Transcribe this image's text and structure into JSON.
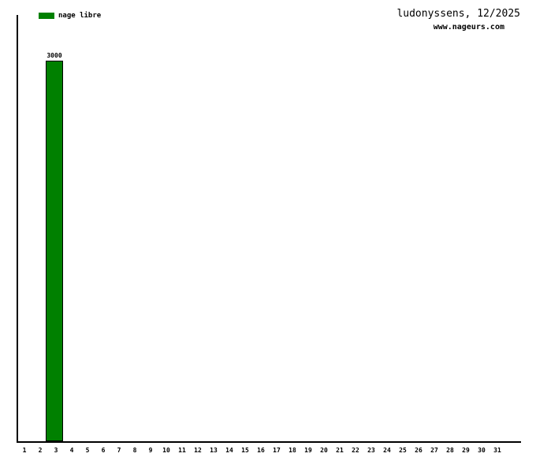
{
  "header": {
    "title": "ludonyssens, 12/2025",
    "subtitle": "www.nageurs.com"
  },
  "legend": {
    "items": [
      {
        "label": "nage libre",
        "color": "#008000"
      }
    ]
  },
  "chart_data": {
    "type": "bar",
    "title": "ludonyssens, 12/2025",
    "subtitle": "www.nageurs.com",
    "categories": [
      1,
      2,
      3,
      4,
      5,
      6,
      7,
      8,
      9,
      10,
      11,
      12,
      13,
      14,
      15,
      16,
      17,
      18,
      19,
      20,
      21,
      22,
      23,
      24,
      25,
      26,
      27,
      28,
      29,
      30,
      31
    ],
    "series": [
      {
        "name": "nage libre",
        "color": "#008000",
        "values": [
          0,
          0,
          3000,
          0,
          0,
          0,
          0,
          0,
          0,
          0,
          0,
          0,
          0,
          0,
          0,
          0,
          0,
          0,
          0,
          0,
          0,
          0,
          0,
          0,
          0,
          0,
          0,
          0,
          0,
          0,
          0
        ]
      }
    ],
    "data_labels": {
      "day": 3,
      "value": 3000,
      "text": "3000"
    },
    "xlabel": "",
    "ylabel": "",
    "ylim": [
      0,
      3360
    ],
    "grid": false,
    "y_ticks": "none",
    "legend_position": "top-left",
    "axes_shown": "left and bottom only"
  },
  "colors": {
    "background": "#ffffff",
    "axis": "#000000",
    "text": "#000000",
    "bar": "#008000"
  }
}
